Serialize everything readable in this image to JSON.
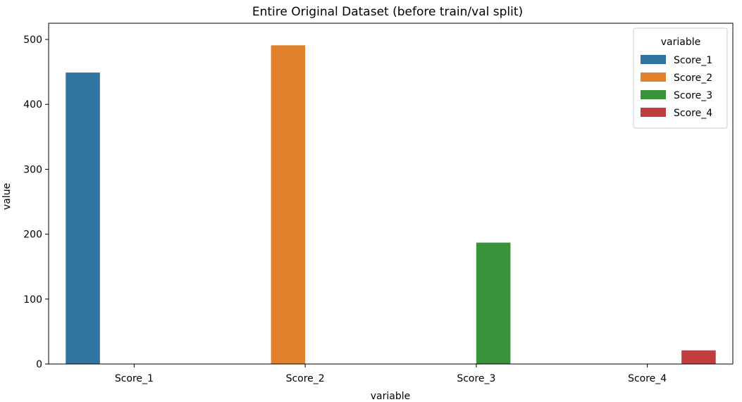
{
  "chart_data": {
    "type": "bar",
    "title": "Entire Original Dataset (before train/val split)",
    "xlabel": "variable",
    "ylabel": "value",
    "categories": [
      "Score_1",
      "Score_2",
      "Score_3",
      "Score_4"
    ],
    "ylim": [
      0,
      525
    ],
    "yticks": [
      0,
      100,
      200,
      300,
      400,
      500
    ],
    "grid": false,
    "legend": {
      "title": "variable",
      "placement": "top-right"
    },
    "series": [
      {
        "name": "Score_1",
        "color": "#3274a1",
        "values": [
          449,
          0,
          0,
          0
        ]
      },
      {
        "name": "Score_2",
        "color": "#e1812c",
        "values": [
          0,
          491,
          0,
          0
        ]
      },
      {
        "name": "Score_3",
        "color": "#3a923a",
        "values": [
          0,
          0,
          187,
          0
        ]
      },
      {
        "name": "Score_4",
        "color": "#c03d3e",
        "values": [
          0,
          0,
          0,
          21
        ]
      }
    ]
  }
}
